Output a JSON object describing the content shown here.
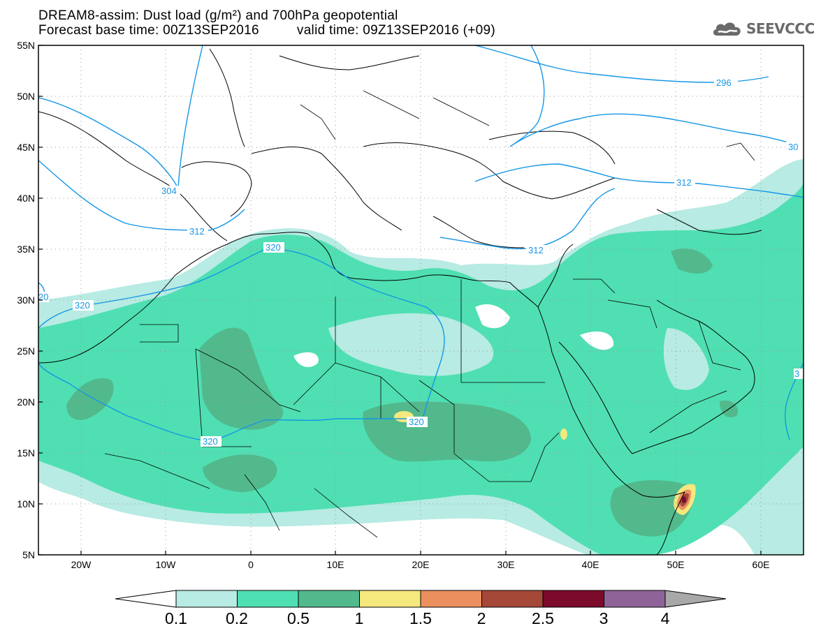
{
  "header": {
    "title": "DREAM8-assim: Dust load (g/m²) and 700hPa geopotential",
    "base_time": "Forecast base time: 00Z13SEP2016",
    "valid_time": "valid time: 09Z13SEP2016 (+09)"
  },
  "logo": {
    "text": "SEEVCCC",
    "icon": "cloud-icon"
  },
  "map": {
    "projection": "lat-lon",
    "lon_range": [
      -25,
      65
    ],
    "lat_range": [
      5,
      55
    ],
    "grid": "dotted",
    "lat_labels": [
      "55N",
      "50N",
      "45N",
      "40N",
      "35N",
      "30N",
      "25N",
      "20N",
      "15N",
      "10N",
      "5N"
    ],
    "lon_labels": [
      "20W",
      "10W",
      "0",
      "10E",
      "20E",
      "30E",
      "40E",
      "50E",
      "60E"
    ],
    "contour_labels": [
      "296",
      "30",
      "304",
      "312",
      "312",
      "312",
      "320",
      "320",
      "320",
      "320",
      "20",
      "3"
    ]
  },
  "colorbar": {
    "labels": [
      "0.1",
      "0.2",
      "0.5",
      "1",
      "1.5",
      "2",
      "2.5",
      "3",
      "4"
    ],
    "colors": [
      "#b7ebe3",
      "#4fdfb2",
      "#52b98d",
      "#f5e87d",
      "#eb8f5f",
      "#a54838",
      "#7c0a2a",
      "#8e6498",
      "#a8a8a8"
    ]
  },
  "colors": {
    "contour": "#1597e5",
    "border": "#000000",
    "land": "#ffffff"
  }
}
